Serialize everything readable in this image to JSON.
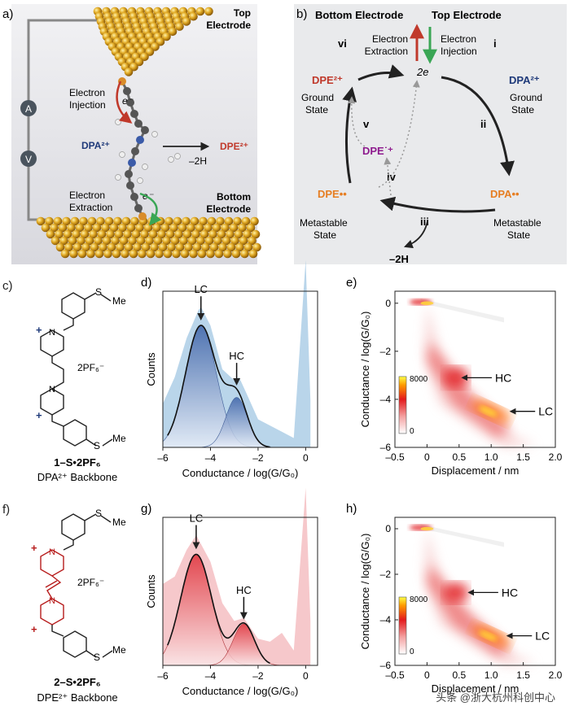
{
  "panels": {
    "a": {
      "label": "a)",
      "top_electrode": [
        "Top",
        "Electrode"
      ],
      "bottom_electrode": [
        "Bottom",
        "Electrode"
      ],
      "electron_injection": [
        "Electron",
        "Injection"
      ],
      "electron_extraction": [
        "Electron",
        "Extraction"
      ],
      "e_minus": "e⁻",
      "dpa": "DPA²⁺",
      "dpe": "DPE²⁺",
      "minus2h": "–2H",
      "meter_a": "A",
      "meter_v": "V"
    },
    "b": {
      "label": "b)",
      "bottom_electrode": "Bottom Electrode",
      "top_electrode": "Top Electrode",
      "electron_extraction": [
        "Electron",
        "Extraction"
      ],
      "electron_injection": [
        "Electron",
        "Injection"
      ],
      "two_e": "2e",
      "dpe2": "DPE²⁺",
      "dpa2": "DPA²⁺",
      "dpe_rad": "DPE˙⁺",
      "dpe_dot": "DPE••",
      "dpa_dot": "DPA••",
      "ground_state": [
        "Ground",
        "State"
      ],
      "metastable_state": [
        "Metastable",
        "State"
      ],
      "minus2h": "–2H",
      "steps": [
        "i",
        "ii",
        "iii",
        "iv",
        "v",
        "vi"
      ]
    },
    "c": {
      "label": "c)",
      "sme": "S",
      "me": "Me",
      "counter_ion": "2PF₆⁻",
      "compound": "1–S•2PF₆",
      "backbone": "DPA²⁺ Backbone"
    },
    "f": {
      "label": "f)",
      "sme": "S",
      "me": "Me",
      "counter_ion": "2PF₆⁻",
      "compound": "2–S•2PF₆",
      "backbone": "DPE²⁺ Backbone"
    },
    "d": {
      "label": "d)"
    },
    "g": {
      "label": "g)"
    },
    "e": {
      "label": "e)"
    },
    "h": {
      "label": "h)"
    }
  },
  "histograms": {
    "ylabel": "Counts",
    "xlabel": "Conductance / log(G/G₀)",
    "xticks": [
      "–6",
      "–4",
      "–2",
      "0"
    ],
    "lc": "LC",
    "hc": "HC"
  },
  "heatmaps": {
    "ylabel": "Conductance / log(G/G₀)",
    "xlabel": "Displacement / nm",
    "xticks": [
      "–0.5",
      "0",
      "0.5",
      "1.0",
      "1.5",
      "2.0"
    ],
    "yticks": [
      "0",
      "–2",
      "–4",
      "–6"
    ],
    "cbar_max": "8000",
    "cbar_min": "0",
    "hc": "HC",
    "lc": "LC"
  },
  "watermark": "头条 @浙大杭州科创中心",
  "chart_data": [
    {
      "type": "area",
      "panel": "d",
      "xlabel": "Conductance / log(G/G₀)",
      "ylabel": "Counts",
      "xlim": [
        -6,
        0.5
      ],
      "x": [
        -6,
        -5.5,
        -5,
        -4.5,
        -4.4,
        -4,
        -3.5,
        -3,
        -2.8,
        -2.5,
        -2,
        -1.5,
        -1,
        -0.5,
        0,
        0.2
      ],
      "values": [
        0.28,
        0.45,
        0.7,
        0.88,
        0.9,
        0.78,
        0.5,
        0.43,
        0.45,
        0.35,
        0.18,
        0.14,
        0.1,
        0.06,
        1.2,
        0.3
      ],
      "peaks": [
        {
          "label": "LC",
          "x": -4.4
        },
        {
          "label": "HC",
          "x": -2.9
        }
      ]
    },
    {
      "type": "area",
      "panel": "g",
      "xlabel": "Conductance / log(G/G₀)",
      "ylabel": "Counts",
      "xlim": [
        -6,
        0.5
      ],
      "x": [
        -6,
        -5.5,
        -5,
        -4.6,
        -4,
        -3.5,
        -3,
        -2.6,
        -2,
        -1.5,
        -1,
        -0.5,
        0,
        0.2
      ],
      "values": [
        0.55,
        0.6,
        0.78,
        0.88,
        0.7,
        0.42,
        0.3,
        0.32,
        0.18,
        0.16,
        0.22,
        0.1,
        1.2,
        0.3
      ],
      "peaks": [
        {
          "label": "LC",
          "x": -4.6
        },
        {
          "label": "HC",
          "x": -2.6
        }
      ]
    },
    {
      "type": "heatmap",
      "panel": "e",
      "xlabel": "Displacement / nm",
      "ylabel": "Conductance / log(G/G₀)",
      "xlim": [
        -0.5,
        2.0
      ],
      "ylim": [
        -6,
        0.5
      ],
      "colorbar": [
        0,
        8000
      ],
      "features": [
        {
          "label": "HC",
          "x": 0.35,
          "y": -3.1
        },
        {
          "label": "LC",
          "x": 1.0,
          "y": -4.5
        }
      ]
    },
    {
      "type": "heatmap",
      "panel": "h",
      "xlabel": "Displacement / nm",
      "ylabel": "Conductance / log(G/G₀)",
      "xlim": [
        -0.5,
        2.0
      ],
      "ylim": [
        -6,
        0.5
      ],
      "colorbar": [
        0,
        8000
      ],
      "features": [
        {
          "label": "HC",
          "x": 0.45,
          "y": -2.8
        },
        {
          "label": "LC",
          "x": 0.95,
          "y": -4.7
        }
      ]
    }
  ]
}
